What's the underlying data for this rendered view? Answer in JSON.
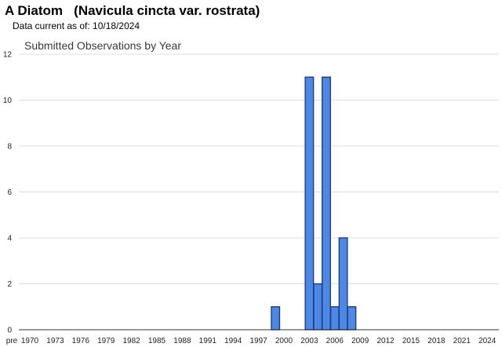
{
  "header": {
    "title": "A Diatom   (Navicula cincta var. rostrata)",
    "date_label": "Data current as of: ",
    "date_value": "10/18/2024"
  },
  "chart_data": {
    "type": "bar",
    "title": "Submitted Observations by Year",
    "xlabel": "",
    "ylabel": "",
    "ylim": [
      0,
      12
    ],
    "y_ticks": [
      0,
      2,
      4,
      6,
      8,
      10,
      12
    ],
    "grid": true,
    "bar_color": "#4d88e6",
    "bar_border_color": "#1f3f80",
    "x_tick_labels": [
      "pre",
      "1970",
      "1973",
      "1976",
      "1979",
      "1982",
      "1985",
      "1988",
      "1991",
      "1994",
      "1997",
      "2000",
      "2003",
      "2006",
      "2009",
      "2012",
      "2015",
      "2018",
      "2021",
      "2024"
    ],
    "categories": [
      "1999",
      "2003",
      "2004",
      "2005",
      "2006",
      "2007",
      "2008"
    ],
    "values": [
      1,
      11,
      2,
      11,
      1,
      4,
      1
    ]
  }
}
